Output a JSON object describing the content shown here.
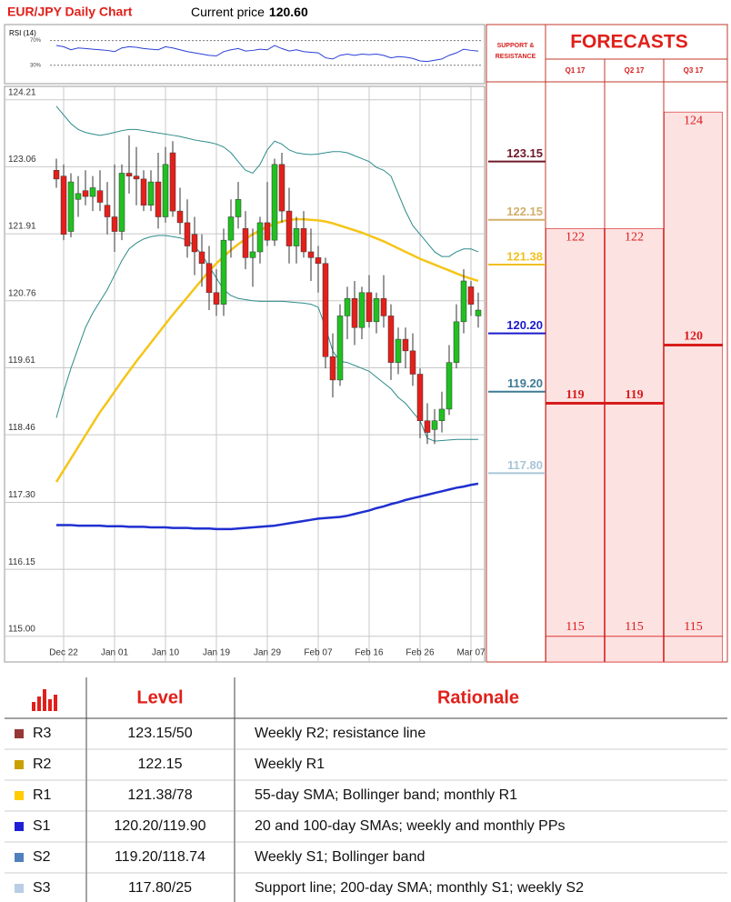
{
  "chart_data": [
    {
      "type": "candlestick",
      "title": "EUR/JPY Daily Chart",
      "current_price_label": "Current price",
      "current_price": "120.60",
      "categories": [
        null,
        "Dec 22",
        null,
        null,
        null,
        null,
        null,
        null,
        "Jan 01",
        null,
        null,
        null,
        null,
        null,
        null,
        "Jan 10",
        null,
        null,
        null,
        null,
        null,
        null,
        "Jan 19",
        null,
        null,
        null,
        null,
        null,
        null,
        "Jan 29",
        null,
        null,
        null,
        null,
        null,
        null,
        "Feb 07",
        null,
        null,
        null,
        null,
        null,
        null,
        "Feb 16",
        null,
        null,
        null,
        null,
        null,
        null,
        "Feb 26",
        null,
        null,
        null,
        null,
        null,
        null,
        "Mar 07",
        null
      ],
      "open": [
        123,
        122.9,
        121.95,
        122.5,
        122.65,
        122.55,
        122.65,
        122.4,
        122.2,
        121.95,
        122.95,
        122.9,
        122.85,
        122.4,
        122.8,
        122.2,
        123.3,
        122.3,
        122.1,
        121.9,
        121.6,
        121.4,
        120.9,
        120.7,
        121.8,
        122.2,
        122,
        121.5,
        121.6,
        122.1,
        121.8,
        123.1,
        122.3,
        121.7,
        122,
        121.6,
        121.5,
        121.4,
        119.8,
        119.4,
        120.5,
        120.8,
        120.3,
        120.9,
        120.4,
        120.8,
        120.5,
        119.7,
        120.1,
        119.9,
        119.5,
        118.7,
        118.55,
        118.7,
        118.9,
        119.7,
        120.4,
        121,
        120.5
      ],
      "high": [
        123.2,
        123.1,
        122.95,
        122.9,
        123,
        122.9,
        123,
        122.8,
        123.1,
        123.1,
        123.6,
        123.4,
        123,
        123,
        123.3,
        123.4,
        123.5,
        122.7,
        122.5,
        122.2,
        121.9,
        121.7,
        121.3,
        122,
        122.5,
        122.8,
        122.3,
        122,
        122.2,
        122.8,
        123.2,
        123.3,
        122.7,
        122.2,
        122.3,
        122,
        121.7,
        121.5,
        120.2,
        120.7,
        121,
        121.1,
        121,
        121.2,
        120.9,
        121.2,
        120.7,
        120.3,
        120.3,
        120.2,
        119.6,
        119,
        118.9,
        119.2,
        120,
        120.7,
        121.3,
        121.1,
        120.9
      ],
      "low": [
        122.7,
        121.8,
        121.85,
        122.2,
        122.4,
        122.3,
        122.3,
        121.9,
        121.6,
        121.8,
        122.6,
        122.4,
        122.3,
        122.3,
        122,
        122.1,
        122.2,
        121.9,
        121.5,
        121.2,
        121,
        120.6,
        120.5,
        120.5,
        121.5,
        122,
        121.3,
        121,
        121.4,
        121.7,
        121.7,
        122.1,
        121.4,
        121.4,
        121.5,
        121.1,
        120.9,
        119.6,
        119.1,
        119.3,
        120.1,
        120,
        120.1,
        120.3,
        120.2,
        120.3,
        119.4,
        119.5,
        119.6,
        119.3,
        118.4,
        118.3,
        118.3,
        118.5,
        118.8,
        119.6,
        120.2,
        120.5,
        120.3
      ],
      "close": [
        122.85,
        121.9,
        122.8,
        122.6,
        122.55,
        122.7,
        122.45,
        122.2,
        121.95,
        122.95,
        122.9,
        122.85,
        122.4,
        122.8,
        122.2,
        123.1,
        122.3,
        122.1,
        121.7,
        121.6,
        121.4,
        120.9,
        120.7,
        121.8,
        122.2,
        122.5,
        121.5,
        121.6,
        122.1,
        121.8,
        123.1,
        122.3,
        121.7,
        122,
        121.6,
        121.5,
        121.4,
        119.8,
        119.4,
        120.5,
        120.8,
        120.3,
        120.9,
        120.4,
        120.8,
        120.5,
        119.7,
        120.1,
        119.9,
        119.5,
        118.7,
        118.5,
        118.7,
        118.9,
        119.7,
        120.4,
        121.1,
        120.7,
        120.6
      ],
      "up_color": "#21c021",
      "down_color": "#e3201b",
      "series": [
        {
          "color": "#2e8b8b",
          "values": [
            124.1,
            123.95,
            123.8,
            123.7,
            123.65,
            123.62,
            123.6,
            123.62,
            123.65,
            123.68,
            123.7,
            123.7,
            123.68,
            123.66,
            123.64,
            123.62,
            123.6,
            123.58,
            123.55,
            123.52,
            123.5,
            123.48,
            123.45,
            123.4,
            123.3,
            123.15,
            123,
            122.95,
            123.1,
            123.35,
            123.5,
            123.45,
            123.35,
            123.3,
            123.28,
            123.27,
            123.28,
            123.3,
            123.32,
            123.32,
            123.3,
            123.25,
            123.2,
            123.15,
            123.05,
            123,
            122.9,
            122.6,
            122.3,
            122.05,
            121.9,
            121.75,
            121.6,
            121.52,
            121.52,
            121.6,
            121.65,
            121.65,
            121.6
          ]
        },
        {
          "color": "#2e8b8b",
          "values": [
            118.75,
            119.2,
            119.6,
            119.95,
            120.3,
            120.55,
            120.75,
            120.95,
            121.2,
            121.45,
            121.65,
            121.75,
            121.82,
            121.86,
            121.88,
            121.88,
            121.86,
            121.84,
            121.8,
            121.7,
            121.55,
            121.35,
            121.15,
            120.95,
            120.85,
            120.8,
            120.78,
            120.76,
            120.75,
            120.75,
            120.75,
            120.75,
            120.74,
            120.73,
            120.72,
            120.7,
            120.65,
            120.3,
            119.9,
            119.72,
            119.7,
            119.65,
            119.6,
            119.55,
            119.45,
            119.35,
            119.25,
            119.1,
            119,
            118.85,
            118.7,
            118.4,
            118.35,
            118.36,
            118.37,
            118.38,
            118.38,
            118.38,
            118.38
          ]
        },
        {
          "color": "#f5c518",
          "values": [
            117.65,
            117.85,
            118.05,
            118.25,
            118.45,
            118.65,
            118.85,
            119.02,
            119.2,
            119.38,
            119.55,
            119.72,
            119.88,
            120.04,
            120.2,
            120.36,
            120.52,
            120.67,
            120.82,
            120.97,
            121.12,
            121.27,
            121.4,
            121.52,
            121.63,
            121.73,
            121.82,
            121.9,
            121.97,
            122.03,
            122.08,
            122.12,
            122.15,
            122.16,
            122.16,
            122.15,
            122.14,
            122.12,
            122.09,
            122.05,
            122.01,
            121.97,
            121.93,
            121.88,
            121.83,
            121.78,
            121.72,
            121.66,
            121.6,
            121.54,
            121.48,
            121.43,
            121.38,
            121.33,
            121.28,
            121.23,
            121.18,
            121.14,
            121.1
          ]
        },
        {
          "color": "#1f2fd0",
          "values": [
            116.91,
            116.91,
            116.91,
            116.9,
            116.9,
            116.9,
            116.9,
            116.89,
            116.89,
            116.89,
            116.88,
            116.88,
            116.88,
            116.87,
            116.87,
            116.87,
            116.86,
            116.86,
            116.86,
            116.85,
            116.85,
            116.85,
            116.84,
            116.84,
            116.84,
            116.85,
            116.86,
            116.87,
            116.88,
            116.89,
            116.9,
            116.92,
            116.94,
            116.96,
            116.98,
            117,
            117.02,
            117.03,
            117.04,
            117.05,
            117.07,
            117.1,
            117.13,
            117.16,
            117.2,
            117.23,
            117.27,
            117.3,
            117.34,
            117.37,
            117.4,
            117.43,
            117.46,
            117.49,
            117.52,
            117.55,
            117.57,
            117.6,
            117.62
          ]
        }
      ],
      "ylim": [
        114.56,
        124.44
      ],
      "yticks": [
        124.21,
        123.06,
        121.91,
        120.76,
        119.61,
        118.46,
        {
          "value": 117.3,
          "label": "117.30"
        },
        116.15,
        {
          "value": 115,
          "label": "115.00"
        }
      ],
      "grid": true
    },
    {
      "type": "line",
      "title": "RSI (14)",
      "color": "#2a3fd6",
      "values": [
        62,
        60,
        55,
        58,
        57,
        56,
        55,
        54,
        52,
        58,
        60,
        59,
        57,
        56,
        55,
        60,
        58,
        55,
        52,
        50,
        48,
        46,
        45,
        52,
        55,
        57,
        53,
        54,
        56,
        55,
        62,
        57,
        53,
        55,
        52,
        51,
        50,
        42,
        40,
        46,
        48,
        46,
        48,
        47,
        48,
        46,
        42,
        44,
        43,
        41,
        37,
        36,
        38,
        40,
        46,
        50,
        56,
        54,
        53
      ],
      "ylim": [
        0,
        96
      ],
      "yticks": [
        {
          "value": 70,
          "label": "70%"
        },
        {
          "value": 30,
          "label": "30%"
        }
      ]
    }
  ],
  "forecasts": {
    "title": "FORECASTS",
    "sr_label": [
      "SUPPORT &",
      "RESISTANCE"
    ],
    "levels": {
      "values": [
        123.15,
        122.15,
        121.38,
        120.2,
        119.2,
        117.8
      ],
      "value_labels": [
        "123.15",
        "122.15",
        "121.38",
        "120.20",
        "119.20",
        "117.80"
      ],
      "colors": [
        "#6e1a2a",
        "#d2b06a",
        "#f0c020",
        "#1a1acc",
        "#3f7a96",
        "#a9c6d6"
      ]
    },
    "quarters": [
      "Q1 17",
      "Q2 17",
      "Q3 17"
    ],
    "high": [
      122,
      122,
      124
    ],
    "mid": [
      119,
      119,
      120
    ],
    "low": [
      115,
      115,
      115
    ]
  },
  "table": {
    "header": [
      "Level",
      "Rationale"
    ],
    "rows": [
      {
        "code": "R3",
        "color": "#953735",
        "level": "123.15/50",
        "rationale": "Weekly R2; resistance line"
      },
      {
        "code": "R2",
        "color": "#c9a000",
        "level": "122.15",
        "rationale": "Weekly R1"
      },
      {
        "code": "R1",
        "color": "#ffcc00",
        "level": "121.38/78",
        "rationale": "55-day SMA; Bollinger band; monthly R1"
      },
      {
        "code": "S1",
        "color": "#1f1fd6",
        "level": "120.20/119.90",
        "rationale": "20 and 100-day SMAs; weekly and monthly PPs"
      },
      {
        "code": "S2",
        "color": "#4f81bd",
        "level": "119.20/118.74",
        "rationale": "Weekly S1; Bollinger band"
      },
      {
        "code": "S3",
        "color": "#b9cde5",
        "level": "117.80/25",
        "rationale": "Support line; 200-day SMA; monthly S1; weekly S2"
      }
    ]
  }
}
